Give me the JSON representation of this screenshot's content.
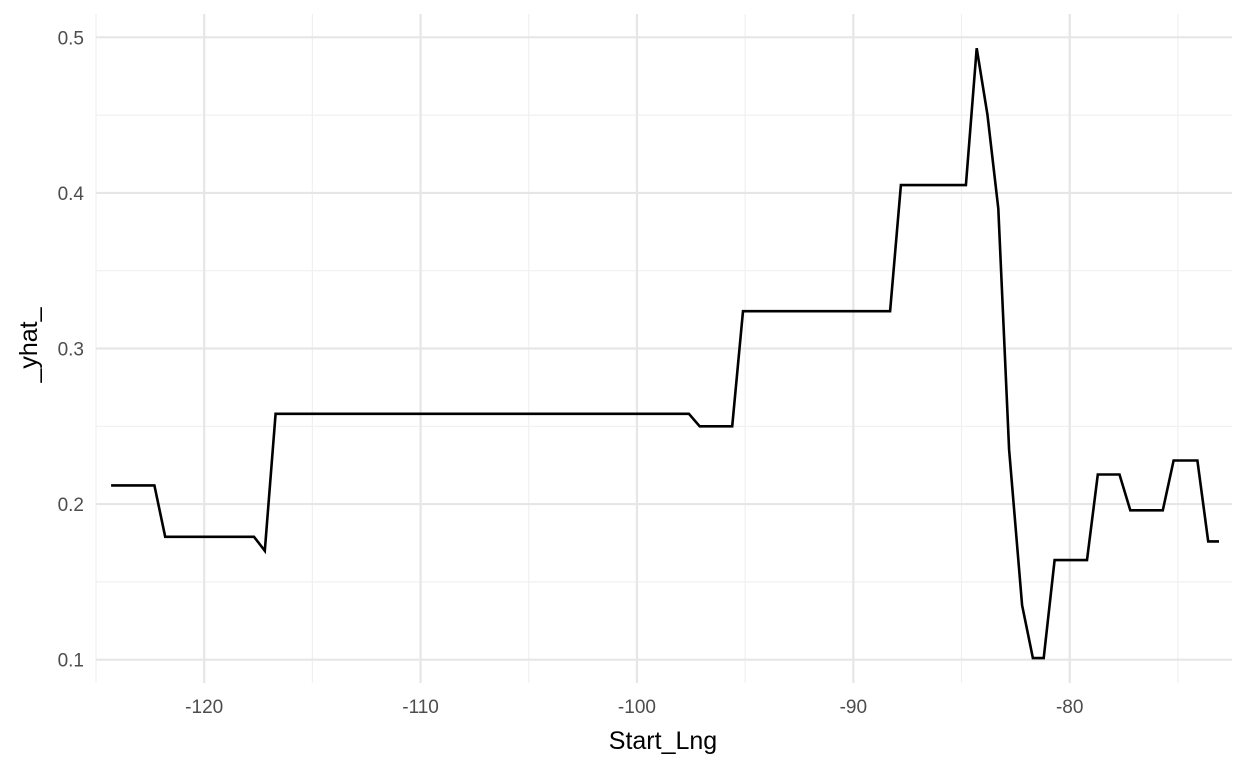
{
  "chart_data": {
    "type": "line",
    "title": "",
    "xlabel": "Start_Lng",
    "ylabel": "_yhat_",
    "xlim": [
      -125.0,
      -72.5
    ],
    "ylim": [
      0.085,
      0.515
    ],
    "x_ticks": [
      -120,
      -110,
      -100,
      -90,
      -80
    ],
    "x_tick_labels": [
      "-120",
      "-110",
      "-100",
      "-90",
      "-80"
    ],
    "y_ticks": [
      0.1,
      0.2,
      0.3,
      0.4,
      0.5
    ],
    "y_tick_labels": [
      "0.1",
      "0.2",
      "0.3",
      "0.4",
      "0.5"
    ],
    "grid": true,
    "legend": "none",
    "colors": {
      "line": "#000000",
      "grid_major": "#e6e6e6",
      "grid_minor": "#f0f0f0",
      "background": "#ffffff"
    },
    "series": [
      {
        "x": [
          -124.3,
          -122.3,
          -121.8,
          -117.7,
          -117.2,
          -116.7,
          -97.6,
          -97.1,
          -95.6,
          -95.1,
          -88.3,
          -87.8,
          -84.8,
          -84.3,
          -83.8,
          -83.3,
          -82.8,
          -82.2,
          -81.7,
          -81.2,
          -80.7,
          -79.2,
          -78.7,
          -77.7,
          -77.2,
          -75.7,
          -75.2,
          -74.1,
          -73.6,
          -73.1
        ],
        "y": [
          0.212,
          0.212,
          0.179,
          0.179,
          0.17,
          0.258,
          0.258,
          0.25,
          0.25,
          0.324,
          0.324,
          0.405,
          0.405,
          0.493,
          0.45,
          0.39,
          0.235,
          0.135,
          0.101,
          0.101,
          0.164,
          0.164,
          0.219,
          0.219,
          0.196,
          0.196,
          0.228,
          0.228,
          0.176,
          0.176
        ]
      }
    ]
  }
}
